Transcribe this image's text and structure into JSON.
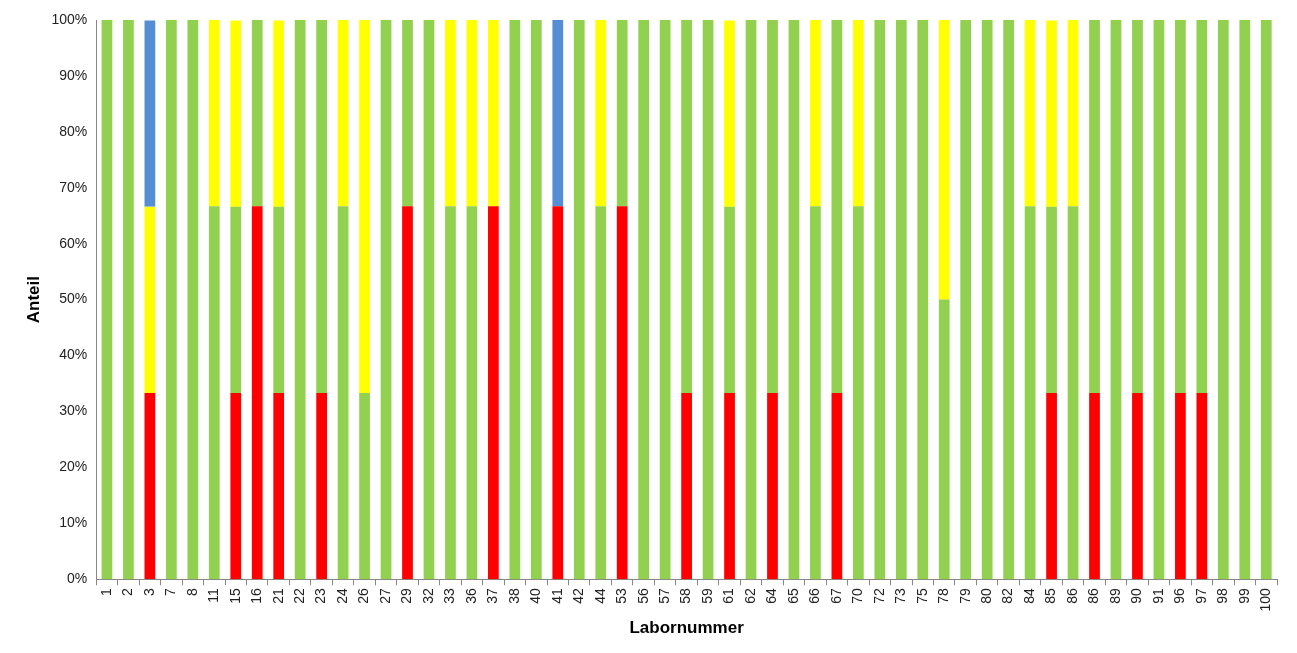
{
  "chart_data": {
    "type": "bar",
    "stacked": true,
    "xlabel": "Labornummer",
    "ylabel": "Anteil",
    "categories": [
      "1",
      "2",
      "3",
      "7",
      "8",
      "11",
      "15",
      "16",
      "21",
      "22",
      "23",
      "24",
      "26",
      "27",
      "29",
      "32",
      "33",
      "36",
      "37",
      "38",
      "40",
      "41",
      "42",
      "44",
      "53",
      "56",
      "57",
      "58",
      "59",
      "61",
      "62",
      "64",
      "65",
      "66",
      "67",
      "70",
      "72",
      "73",
      "75",
      "78",
      "79",
      "80",
      "82",
      "84",
      "85",
      "86",
      "86",
      "89",
      "90",
      "91",
      "96",
      "97",
      "98",
      "99",
      "100"
    ],
    "series": [
      {
        "color": "#ff0000",
        "values": [
          0,
          0,
          33.3,
          0,
          0,
          0,
          33.3,
          66.7,
          33.3,
          0,
          33.3,
          0,
          0,
          0,
          66.7,
          0,
          0,
          0,
          66.7,
          0,
          0,
          66.7,
          0,
          0,
          66.7,
          0,
          0,
          33.3,
          0,
          33.3,
          0,
          33.3,
          0,
          0,
          33.3,
          0,
          0,
          0,
          0,
          0,
          0,
          0,
          0,
          0,
          33.3,
          0,
          33.3,
          0,
          33.3,
          0,
          33.3,
          33.3,
          0,
          0,
          0
        ]
      },
      {
        "color": "#92d050",
        "values": [
          100,
          100,
          0,
          100,
          100,
          66.7,
          33.3,
          33.3,
          33.3,
          100,
          66.7,
          66.7,
          33.3,
          100,
          33.3,
          100,
          66.7,
          66.7,
          0,
          100,
          100,
          0,
          100,
          66.7,
          33.3,
          100,
          100,
          66.7,
          100,
          33.3,
          100,
          66.7,
          100,
          66.7,
          66.7,
          66.7,
          100,
          100,
          100,
          50,
          100,
          100,
          100,
          66.7,
          33.3,
          66.7,
          66.7,
          100,
          66.7,
          100,
          66.7,
          66.7,
          100,
          100,
          100
        ]
      },
      {
        "color": "#ffff00",
        "values": [
          0,
          0,
          33.3,
          0,
          0,
          33.3,
          33.3,
          0,
          33.3,
          0,
          0,
          33.3,
          66.7,
          0,
          0,
          0,
          33.3,
          33.3,
          33.3,
          0,
          0,
          0,
          0,
          33.3,
          0,
          0,
          0,
          0,
          0,
          33.3,
          0,
          0,
          0,
          33.3,
          0,
          33.3,
          0,
          0,
          0,
          50,
          0,
          0,
          0,
          33.3,
          33.3,
          33.3,
          0,
          0,
          0,
          0,
          0,
          0,
          0,
          0,
          0
        ]
      },
      {
        "color": "#558ed5",
        "values": [
          0,
          0,
          33.3,
          0,
          0,
          0,
          0,
          0,
          0,
          0,
          0,
          0,
          0,
          0,
          0,
          0,
          0,
          0,
          0,
          0,
          0,
          33.3,
          0,
          0,
          0,
          0,
          0,
          0,
          0,
          0,
          0,
          0,
          0,
          0,
          0,
          0,
          0,
          0,
          0,
          0,
          0,
          0,
          0,
          0,
          0,
          0,
          0,
          0,
          0,
          0,
          0,
          0,
          0,
          0,
          0
        ]
      }
    ],
    "ylim": [
      0,
      100
    ],
    "yticks": [
      {
        "value": 0,
        "label": "0%"
      },
      {
        "value": 10,
        "label": "10%"
      },
      {
        "value": 20,
        "label": "20%"
      },
      {
        "value": 30,
        "label": "30%"
      },
      {
        "value": 40,
        "label": "40%"
      },
      {
        "value": 50,
        "label": "50%"
      },
      {
        "value": 60,
        "label": "60%"
      },
      {
        "value": 70,
        "label": "70%"
      },
      {
        "value": 80,
        "label": "80%"
      },
      {
        "value": 90,
        "label": "90%"
      },
      {
        "value": 100,
        "label": "100%"
      }
    ],
    "legend": false
  }
}
